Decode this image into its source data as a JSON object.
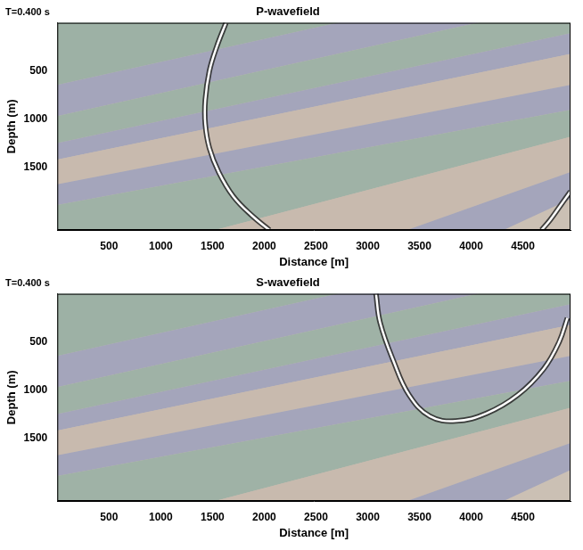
{
  "chart_data": [
    {
      "type": "line",
      "title": "P-wavefield",
      "annotation": "T=0.400 s",
      "x_label": "Distance [m]",
      "y_label": "Depth (m)",
      "xlim": [
        0,
        4960
      ],
      "ylim": [
        2150,
        0
      ],
      "xticks": [
        500,
        1000,
        1500,
        2000,
        2500,
        3000,
        3500,
        4000,
        4500
      ],
      "yticks": [
        500,
        1000,
        1500
      ],
      "grid": false,
      "series": [
        {
          "color": "#ffffff",
          "marker": "none",
          "line_style": "solid",
          "x": [
            1630,
            1540,
            1470,
            1430,
            1430,
            1470,
            1560,
            1700,
            1880,
            2050
          ],
          "values": [
            0,
            250,
            500,
            800,
            1050,
            1300,
            1550,
            1800,
            2000,
            2150
          ]
        },
        {
          "color": "#ffffff",
          "marker": "none",
          "line_style": "solid",
          "x": [
            4960,
            4860,
            4760,
            4680
          ],
          "values": [
            1750,
            1900,
            2050,
            2150
          ]
        }
      ]
    },
    {
      "type": "line",
      "title": "S-wavefield",
      "annotation": "T=0.400 s",
      "x_label": "Distance [m]",
      "y_label": "Depth (m)",
      "xlim": [
        0,
        4960
      ],
      "ylim": [
        2150,
        0
      ],
      "xticks": [
        500,
        1000,
        1500,
        2000,
        2500,
        3000,
        3500,
        4000,
        4500
      ],
      "yticks": [
        500,
        1000,
        1500
      ],
      "grid": false,
      "series": [
        {
          "color": "#ffffff",
          "marker": "none",
          "line_style": "solid",
          "x": [
            3080,
            3120,
            3250,
            3400,
            3600,
            3850,
            4150,
            4450,
            4700,
            4850,
            4930
          ],
          "values": [
            0,
            300,
            700,
            1050,
            1270,
            1320,
            1240,
            1050,
            780,
            500,
            250
          ]
        }
      ]
    }
  ]
}
